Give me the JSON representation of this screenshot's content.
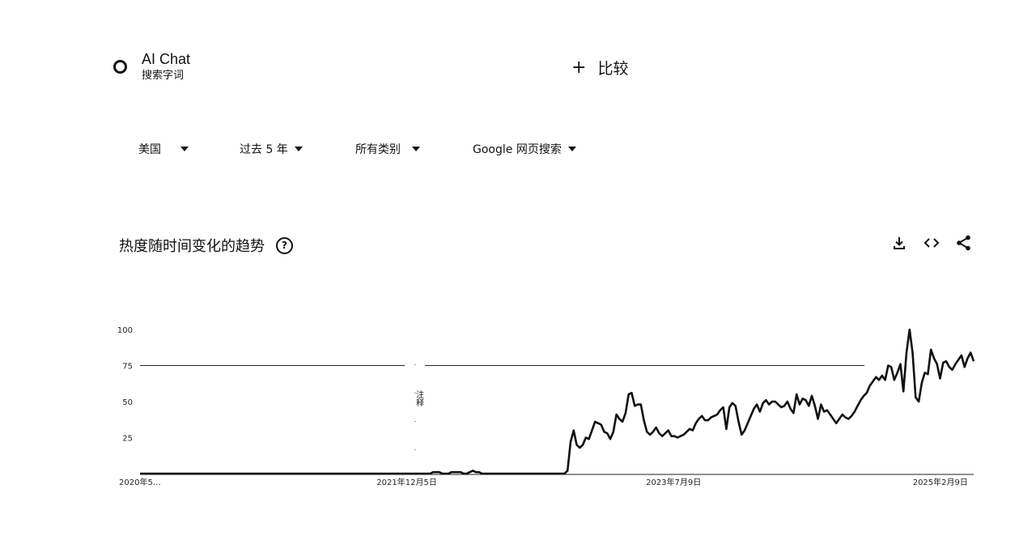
{
  "search_term": {
    "name": "AI Chat",
    "type": "搜索字词"
  },
  "compare": {
    "label": "比较"
  },
  "filters": [
    {
      "label": "美国"
    },
    {
      "label": "过去 5 年"
    },
    {
      "label": "所有类别"
    },
    {
      "label": "Google 网页搜索"
    }
  ],
  "section": {
    "title": "热度随时间变化的趋势",
    "help_icon": "question-circle-icon"
  },
  "actions": [
    {
      "icon": "download-icon"
    },
    {
      "icon": "embed-code-icon"
    },
    {
      "icon": "share-icon"
    }
  ],
  "chart_data": {
    "type": "line",
    "y_ticks": [
      "100",
      "75",
      "50",
      "25"
    ],
    "ylim": [
      0,
      100
    ],
    "x_tick_labels": [
      "2020年5…",
      "2021年12月5日",
      "2023年7月9日",
      "2025年2月9日"
    ],
    "x_tick_positions": [
      0,
      0.32,
      0.64,
      0.96
    ],
    "annotation": "注释",
    "series": [
      {
        "color": "#111111",
        "values": [
          0,
          0,
          0,
          0,
          0,
          0,
          0,
          0,
          0,
          0,
          0,
          0,
          0,
          0,
          0,
          0,
          0,
          0,
          0,
          0,
          0,
          0,
          0,
          0,
          0,
          0,
          0,
          0,
          0,
          0,
          0,
          0,
          0,
          0,
          0,
          0,
          0,
          0,
          0,
          0,
          0,
          0,
          0,
          0,
          0,
          0,
          0,
          0,
          0,
          0,
          0,
          0,
          0,
          0,
          0,
          0,
          0,
          0,
          0,
          0,
          0,
          0,
          0,
          0,
          0,
          0,
          0,
          0,
          0,
          0,
          0,
          0,
          0,
          0,
          0,
          0,
          0,
          0,
          0,
          0,
          0,
          0,
          0,
          0,
          0,
          0,
          0,
          0,
          0,
          0,
          0,
          0,
          0,
          0,
          0,
          0,
          1,
          1,
          1,
          0,
          0,
          0,
          1,
          1,
          1,
          1,
          0,
          0,
          1,
          2,
          1,
          1,
          0,
          0,
          0,
          0,
          0,
          0,
          0,
          0,
          0,
          0,
          0,
          0,
          0,
          0,
          0,
          0,
          0,
          0,
          0,
          0,
          0,
          0,
          0,
          0,
          0,
          0,
          0,
          0,
          2,
          22,
          30,
          20,
          18,
          20,
          25,
          24,
          30,
          36,
          35,
          34,
          29,
          28,
          24,
          29,
          41,
          38,
          36,
          42,
          55,
          56,
          47,
          48,
          48,
          37,
          29,
          27,
          29,
          32,
          28,
          26,
          28,
          30,
          26,
          26,
          25,
          26,
          27,
          29,
          31,
          30,
          35,
          38,
          40,
          37,
          37,
          39,
          40,
          41,
          44,
          46,
          31,
          46,
          49,
          47,
          36,
          27,
          30,
          35,
          40,
          45,
          48,
          43,
          49,
          51,
          48,
          50,
          50,
          48,
          46,
          47,
          50,
          45,
          42,
          55,
          48,
          52,
          51,
          47,
          54,
          47,
          38,
          48,
          43,
          44,
          41,
          38,
          35,
          38,
          41,
          39,
          38,
          40,
          43,
          47,
          51,
          54,
          56,
          61,
          64,
          67,
          65,
          68,
          65,
          75,
          74,
          65,
          70,
          76,
          57,
          84,
          100,
          84,
          53,
          50,
          63,
          70,
          69,
          86,
          80,
          76,
          66,
          77,
          78,
          74,
          72,
          76,
          79,
          82,
          74,
          80,
          84,
          78
        ]
      }
    ]
  }
}
